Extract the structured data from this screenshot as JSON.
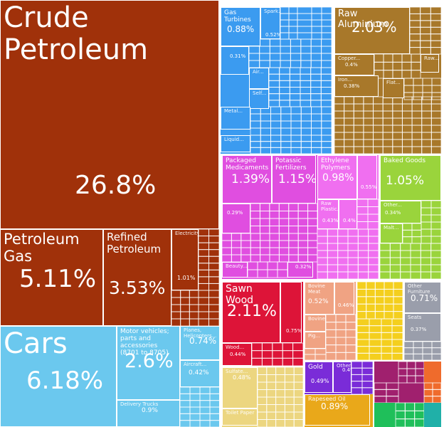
{
  "chart_data": {
    "type": "treemap",
    "unit": "%",
    "items": [
      {
        "id": "crude-petroleum",
        "name": "Crude Petroleum",
        "value": 26.8,
        "label": "26.8%",
        "color": "#a0310a"
      },
      {
        "id": "petroleum-gas",
        "name": "Petroleum Gas",
        "value": 5.11,
        "label": "5.11%",
        "color": "#a0310a"
      },
      {
        "id": "refined-petroleum",
        "name": "Refined Petroleum",
        "value": 3.53,
        "label": "3.53%",
        "color": "#a0310a"
      },
      {
        "id": "electricity",
        "name": "Electricity",
        "value": 1.01,
        "label": "1.01%",
        "color": "#a0310a"
      },
      {
        "id": "cars",
        "name": "Cars",
        "value": 6.18,
        "label": "6.18%",
        "color": "#6bc8ee"
      },
      {
        "id": "motor-vehicle-parts",
        "name": "Motor vehicles; parts and accessories (8701 to 8705)",
        "value": 2.6,
        "label": "2.6%",
        "color": "#6bc8ee"
      },
      {
        "id": "planes-helicopters",
        "name": "Planes, Helicopters...",
        "value": 0.74,
        "label": "0.74%",
        "color": "#6bc8ee"
      },
      {
        "id": "aircraft-parts",
        "name": "Aircraft...",
        "value": 0.42,
        "label": "0.42%",
        "color": "#6bc8ee"
      },
      {
        "id": "delivery-trucks",
        "name": "Delivery Trucks",
        "value": 0.9,
        "label": "0.9%",
        "color": "#6bc8ee"
      },
      {
        "id": "gas-turbines",
        "name": "Gas Turbines",
        "value": 0.88,
        "label": "0.88%",
        "color": "#3b9bf0"
      },
      {
        "id": "spark-engines",
        "name": "Spark...",
        "value": 0.52,
        "label": "0.52%",
        "color": "#3b9bf0"
      },
      {
        "id": "machinery-031",
        "name": "",
        "value": 0.31,
        "label": "0.31%",
        "color": "#3b9bf0"
      },
      {
        "id": "machinery-air",
        "name": "Air...",
        "value": null,
        "label": "",
        "color": "#3b9bf0"
      },
      {
        "id": "machinery-self",
        "name": "Self...",
        "value": null,
        "label": "",
        "color": "#3b9bf0"
      },
      {
        "id": "machinery-metal",
        "name": "Metal...",
        "value": null,
        "label": "",
        "color": "#3b9bf0"
      },
      {
        "id": "machinery-liquid",
        "name": "Liquid...",
        "value": null,
        "label": "",
        "color": "#3b9bf0"
      },
      {
        "id": "raw-aluminium",
        "name": "Raw Aluminium",
        "value": 2.03,
        "label": "2.03%",
        "color": "#a8782a"
      },
      {
        "id": "copper",
        "name": "Copper...",
        "value": 0.4,
        "label": "0.4%",
        "color": "#a8782a"
      },
      {
        "id": "raw-metal",
        "name": "Raw...",
        "value": null,
        "label": "",
        "color": "#a8782a"
      },
      {
        "id": "iron",
        "name": "Iron...",
        "value": 0.38,
        "label": "0.38%",
        "color": "#a8782a"
      },
      {
        "id": "flat-metal",
        "name": "Flat...",
        "value": null,
        "label": "",
        "color": "#a8782a"
      },
      {
        "id": "packaged-medicaments",
        "name": "Packaged Medicaments",
        "value": 1.39,
        "label": "1.39%",
        "color": "#e04ee0"
      },
      {
        "id": "potassic-fertilizers",
        "name": "Potassic Fertilizers",
        "value": 1.15,
        "label": "1.15%",
        "color": "#e04ee0"
      },
      {
        "id": "ethylene-polymers",
        "name": "Ethylene Polymers",
        "value": 0.98,
        "label": "0.98%",
        "color": "#f06ff0"
      },
      {
        "id": "chem-055",
        "name": "",
        "value": 0.55,
        "label": "0.55%",
        "color": "#f06ff0"
      },
      {
        "id": "raw-plastic",
        "name": "Raw Plastic...",
        "value": 0.43,
        "label": "0.43%",
        "color": "#f06ff0"
      },
      {
        "id": "plastic-04",
        "name": "",
        "value": 0.4,
        "label": "0.4%",
        "color": "#f06ff0"
      },
      {
        "id": "chem-029",
        "name": "",
        "value": 0.29,
        "label": "0.29%",
        "color": "#e04ee0"
      },
      {
        "id": "beauty",
        "name": "Beauty...",
        "value": null,
        "label": "",
        "color": "#e04ee0"
      },
      {
        "id": "chem-032",
        "name": "",
        "value": 0.32,
        "label": "0.32%",
        "color": "#e04ee0"
      },
      {
        "id": "baked-goods",
        "name": "Baked Goods",
        "value": 1.05,
        "label": "1.05%",
        "color": "#9ad43c"
      },
      {
        "id": "other-food",
        "name": "Other...",
        "value": 0.34,
        "label": "0.34%",
        "color": "#9ad43c"
      },
      {
        "id": "malt",
        "name": "Malt...",
        "value": null,
        "label": "",
        "color": "#9ad43c"
      },
      {
        "id": "sawn-wood",
        "name": "Sawn Wood",
        "value": 2.11,
        "label": "2.11%",
        "color": "#dd1438"
      },
      {
        "id": "wood-075",
        "name": "",
        "value": 0.75,
        "label": "0.75%",
        "color": "#dd1438"
      },
      {
        "id": "wood-other",
        "name": "Wood...",
        "value": 0.44,
        "label": "0.44%",
        "color": "#dd1438"
      },
      {
        "id": "bovine-meat",
        "name": "Bovine Meat",
        "value": 0.52,
        "label": "0.52%",
        "color": "#f0a383"
      },
      {
        "id": "animal-046",
        "name": "",
        "value": 0.46,
        "label": "0.46%",
        "color": "#f0a383"
      },
      {
        "id": "bovine",
        "name": "Bovine",
        "value": null,
        "label": "",
        "color": "#f0a383"
      },
      {
        "id": "pig",
        "name": "Pig...",
        "value": null,
        "label": "",
        "color": "#f0a383"
      },
      {
        "id": "other-furniture",
        "name": "Other Furniture",
        "value": 0.71,
        "label": "0.71%",
        "color": "#9a9eab"
      },
      {
        "id": "seats",
        "name": "Seats",
        "value": 0.37,
        "label": "0.37%",
        "color": "#9a9eab"
      },
      {
        "id": "sulfate",
        "name": "Sulfate...",
        "value": 0.48,
        "label": "0.48%",
        "color": "#ecd680"
      },
      {
        "id": "toilet-paper",
        "name": "Toilet Paper",
        "value": null,
        "label": "",
        "color": "#ecd680"
      },
      {
        "id": "gold",
        "name": "Gold",
        "value": 0.49,
        "label": "0.49%",
        "color": "#7a2cd8"
      },
      {
        "id": "other-precious",
        "name": "Other...",
        "value": 0.4,
        "label": "0.4%",
        "color": "#7a2cd8"
      },
      {
        "id": "rapeseed-oil",
        "name": "Rapeseed Oil",
        "value": 0.89,
        "label": "0.89%",
        "color": "#e9a81a"
      }
    ]
  }
}
